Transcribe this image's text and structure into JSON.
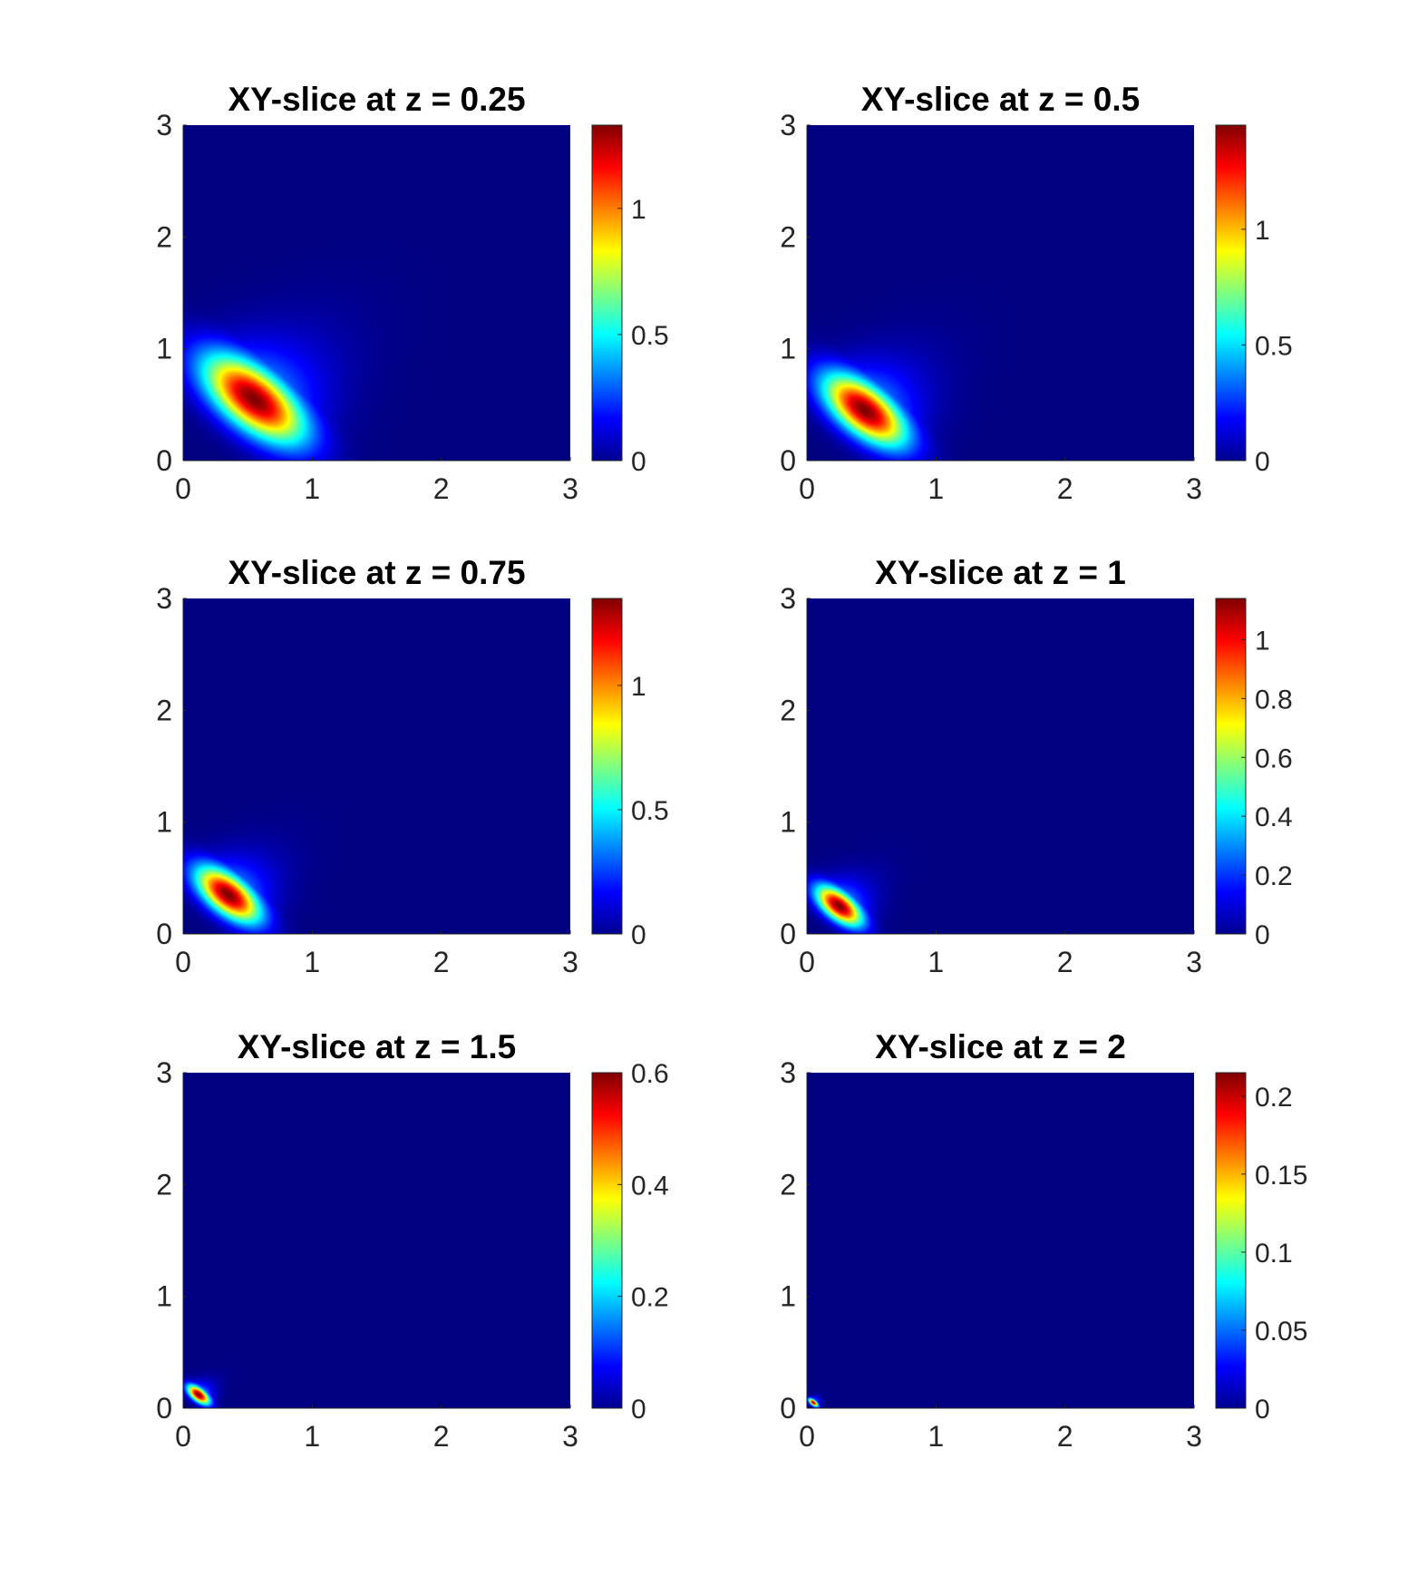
{
  "chart_data": [
    {
      "type": "heatmap",
      "title": "XY-slice at z = 0.25",
      "xlabel": "",
      "ylabel": "",
      "xlim": [
        0,
        3
      ],
      "ylim": [
        0,
        3
      ],
      "xticks": [
        "0",
        "1",
        "2",
        "3"
      ],
      "yticks": [
        "0",
        "1",
        "2",
        "3"
      ],
      "colormap": "jet",
      "colorbar": {
        "range": [
          0,
          1.33
        ],
        "ticks": [
          0,
          0.5,
          1
        ],
        "tick_labels": [
          "0",
          "0.5",
          "1"
        ]
      },
      "peak": {
        "x": 0.6,
        "y": 0.5,
        "value": 1.33
      },
      "grid": false
    },
    {
      "type": "heatmap",
      "title": "XY-slice at z = 0.5",
      "xlabel": "",
      "ylabel": "",
      "xlim": [
        0,
        3
      ],
      "ylim": [
        0,
        3
      ],
      "xticks": [
        "0",
        "1",
        "2",
        "3"
      ],
      "yticks": [
        "0",
        "1",
        "2",
        "3"
      ],
      "colormap": "jet",
      "colorbar": {
        "range": [
          0,
          1.45
        ],
        "ticks": [
          0,
          0.5,
          1
        ],
        "tick_labels": [
          "0",
          "0.5",
          "1"
        ]
      },
      "peak": {
        "x": 0.45,
        "y": 0.45,
        "value": 1.45
      },
      "grid": false
    },
    {
      "type": "heatmap",
      "title": "XY-slice at z = 0.75",
      "xlabel": "",
      "ylabel": "",
      "xlim": [
        0,
        3
      ],
      "ylim": [
        0,
        3
      ],
      "xticks": [
        "0",
        "1",
        "2",
        "3"
      ],
      "yticks": [
        "0",
        "1",
        "2",
        "3"
      ],
      "colormap": "jet",
      "colorbar": {
        "range": [
          0,
          1.35
        ],
        "ticks": [
          0,
          0.5,
          1
        ],
        "tick_labels": [
          "0",
          "0.5",
          "1"
        ]
      },
      "peak": {
        "x": 0.35,
        "y": 0.35,
        "value": 1.35
      },
      "grid": false
    },
    {
      "type": "heatmap",
      "title": "XY-slice at z = 1",
      "xlabel": "",
      "ylabel": "",
      "xlim": [
        0,
        3
      ],
      "ylim": [
        0,
        3
      ],
      "xticks": [
        "0",
        "1",
        "2",
        "3"
      ],
      "yticks": [
        "0",
        "1",
        "2",
        "3"
      ],
      "colormap": "jet",
      "colorbar": {
        "range": [
          0,
          1.14
        ],
        "ticks": [
          0,
          0.2,
          0.4,
          0.6,
          0.8,
          1
        ],
        "tick_labels": [
          "0",
          "0.2",
          "0.4",
          "0.6",
          "0.8",
          "1"
        ]
      },
      "peak": {
        "x": 0.25,
        "y": 0.25,
        "value": 1.14
      },
      "grid": false
    },
    {
      "type": "heatmap",
      "title": "XY-slice at z = 1.5",
      "xlabel": "",
      "ylabel": "",
      "xlim": [
        0,
        3
      ],
      "ylim": [
        0,
        3
      ],
      "xticks": [
        "0",
        "1",
        "2",
        "3"
      ],
      "yticks": [
        "0",
        "1",
        "2",
        "3"
      ],
      "colormap": "jet",
      "colorbar": {
        "range": [
          0,
          0.6
        ],
        "ticks": [
          0,
          0.2,
          0.4,
          0.6
        ],
        "tick_labels": [
          "0",
          "0.2",
          "0.4",
          "0.6"
        ]
      },
      "peak": {
        "x": 0.12,
        "y": 0.12,
        "value": 0.6
      },
      "grid": false
    },
    {
      "type": "heatmap",
      "title": "XY-slice at z = 2",
      "xlabel": "",
      "ylabel": "",
      "xlim": [
        0,
        3
      ],
      "ylim": [
        0,
        3
      ],
      "xticks": [
        "0",
        "1",
        "2",
        "3"
      ],
      "yticks": [
        "0",
        "1",
        "2",
        "3"
      ],
      "colormap": "jet",
      "colorbar": {
        "range": [
          0,
          0.215
        ],
        "ticks": [
          0,
          0.05,
          0.1,
          0.15,
          0.2
        ],
        "tick_labels": [
          "0",
          "0.05",
          "0.1",
          "0.15",
          "0.2"
        ]
      },
      "peak": {
        "x": 0.05,
        "y": 0.05,
        "value": 0.215
      },
      "grid": false
    }
  ]
}
